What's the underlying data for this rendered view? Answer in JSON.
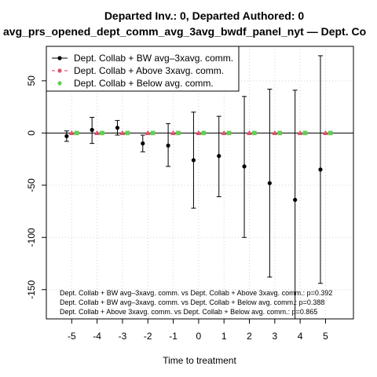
{
  "chart_data": {
    "type": "scatter",
    "title_line1": "Departed Inv.: 0, Departed Authored: 0",
    "title_line2": "avg_prs_opened_dept_comm_avg_3avg_bwdf_panel_nyt — Dept. Co",
    "xlabel": "Time to treatment",
    "ylabel": "",
    "x_ticks": [
      -5,
      -4,
      -3,
      -2,
      -1,
      0,
      1,
      2,
      3,
      4,
      5
    ],
    "y_ticks": [
      -150,
      -100,
      -50,
      0,
      50
    ],
    "xlim": [
      -6,
      6.1
    ],
    "ylim": [
      -178,
      83
    ],
    "grid": true,
    "legend_position": "top-left",
    "series": [
      {
        "name": "Dept. Collab + BW avg–3xavg. comm.",
        "color": "#000000",
        "marker": "circle",
        "offset": -0.2,
        "x": [
          -5,
          -4,
          -3,
          -2,
          -1,
          0,
          1,
          2,
          3,
          4,
          5
        ],
        "y": [
          -3,
          3,
          5,
          -10,
          -12,
          -26,
          -22,
          -32,
          -48,
          -64,
          -35
        ],
        "ci_low": [
          -8,
          -10,
          -2,
          -18,
          -32,
          -72,
          -61,
          -100,
          -138,
          -178,
          -144
        ],
        "ci_high": [
          2,
          15,
          12,
          -2,
          9,
          20,
          16,
          35,
          42,
          41,
          74
        ]
      },
      {
        "name": "Dept. Collab + Above 3xavg. comm.",
        "color": "#df536b",
        "marker": "triangle",
        "offset": 0,
        "x": [
          -5,
          -4,
          -3,
          -2,
          -1,
          0,
          1,
          2,
          3,
          4,
          5
        ],
        "y": [
          0,
          0,
          0,
          0,
          0,
          0,
          0,
          0,
          0,
          0,
          0
        ]
      },
      {
        "name": "Dept. Collab + Below avg. comm.",
        "color": "#61d04f",
        "marker": "square",
        "offset": 0.2,
        "x": [
          -5,
          -4,
          -3,
          -2,
          -1,
          0,
          1,
          2,
          3,
          4,
          5
        ],
        "y": [
          0,
          0,
          0,
          0,
          0,
          0,
          0,
          0,
          0,
          0,
          0
        ]
      }
    ],
    "annotations": [
      "Dept. Collab + BW avg–3xavg. comm. vs Dept. Collab + Above 3xavg. comm.: p=0.392",
      "Dept. Collab + BW avg–3xavg. comm. vs Dept. Collab + Below avg. comm.: p=0.388",
      "Dept. Collab + Above 3xavg. comm. vs Dept. Collab + Below avg. comm.: p=0.865"
    ]
  }
}
